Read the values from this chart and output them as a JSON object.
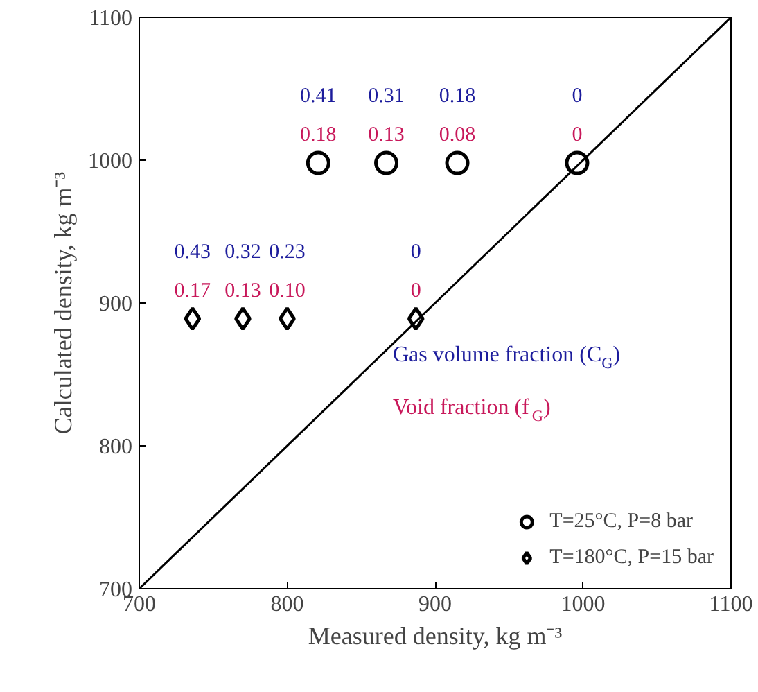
{
  "chart_data": {
    "type": "scatter",
    "xlabel": "Measured density, kg m⁻³",
    "ylabel": "Calculated density, kg m⁻³",
    "xlim": [
      700,
      1100
    ],
    "ylim": [
      700,
      1100
    ],
    "xticks": [
      700,
      800,
      900,
      1000,
      1100
    ],
    "yticks": [
      700,
      800,
      900,
      1000,
      1100
    ],
    "grid": false,
    "legend": "bottom right",
    "series": [
      {
        "name": "T=25°C, P=8 bar",
        "color": "#000000",
        "marker": "circle",
        "x": [
          821,
          867,
          915,
          996
        ],
        "values": [
          998,
          998,
          998,
          998
        ]
      },
      {
        "name": "T=180°C, P=15 bar",
        "color": "#000000",
        "marker": "diamond",
        "x": [
          736,
          770,
          800,
          887
        ],
        "values": [
          889,
          889,
          889,
          889
        ]
      },
      {
        "type": "line",
        "color": "#000000",
        "marker": "none",
        "x": [
          700,
          1100
        ],
        "values": [
          700,
          1100
        ]
      }
    ],
    "annotations": [
      "Gas volume fraction (C$_{G}$)",
      "Void fraction (f$_{G}$)",
      {
        "text": "0.41",
        "x": 821,
        "y": 998
      },
      {
        "text": "0.18",
        "x": 821,
        "y": 998
      },
      {
        "text": "0.31",
        "x": 867,
        "y": 998
      },
      {
        "text": "0.13",
        "x": 867,
        "y": 998
      },
      {
        "text": "0.18",
        "x": 915,
        "y": 998
      },
      {
        "text": "0.08",
        "x": 915,
        "y": 998
      },
      {
        "text": "0",
        "x": 996,
        "y": 998
      },
      {
        "text": "0",
        "x": 996,
        "y": 998
      },
      {
        "text": "0.43",
        "x": 736,
        "y": 889
      },
      {
        "text": "0.17",
        "x": 736,
        "y": 889
      },
      {
        "text": "0.32",
        "x": 770,
        "y": 889
      },
      {
        "text": "0.13",
        "x": 770,
        "y": 889
      },
      {
        "text": "0.23",
        "x": 800,
        "y": 889
      },
      {
        "text": "0.10",
        "x": 800,
        "y": 889
      },
      {
        "text": "0",
        "x": 887,
        "y": 889
      },
      {
        "text": "0",
        "x": 887,
        "y": 889
      }
    ]
  }
}
